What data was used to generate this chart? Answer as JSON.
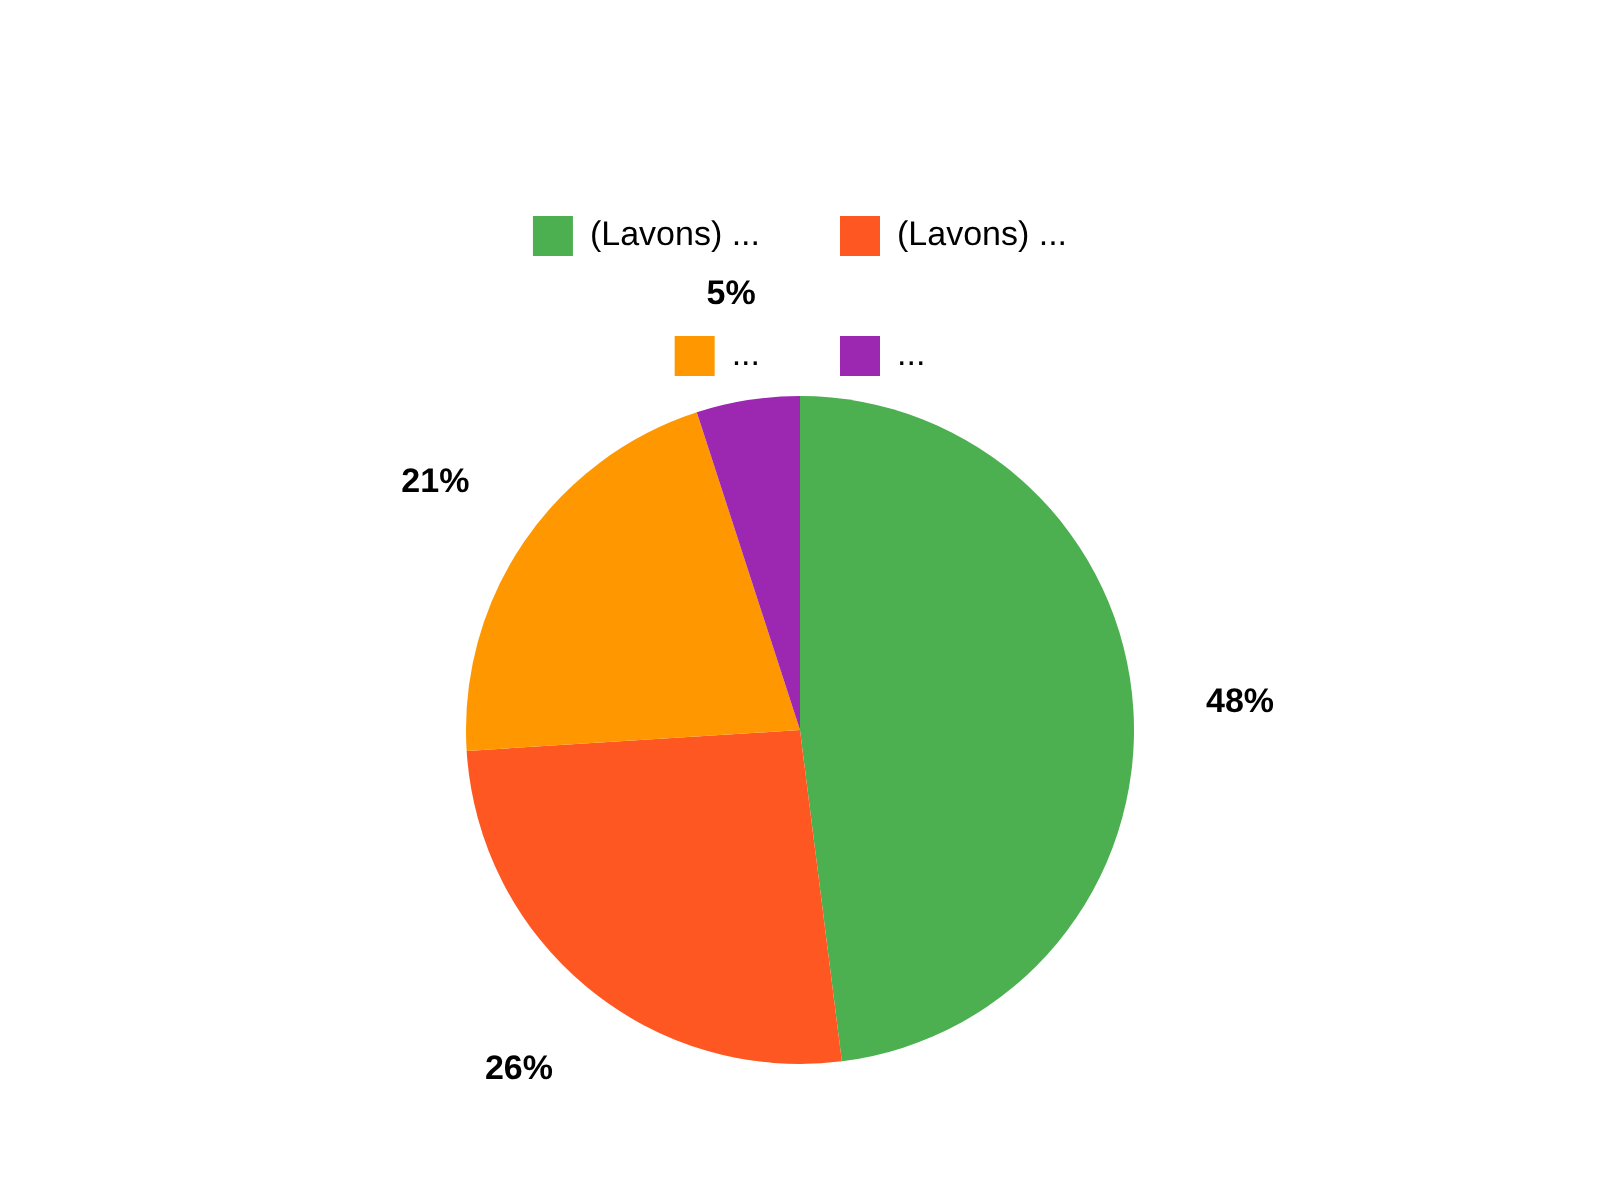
{
  "chart_data": {
    "type": "pie",
    "categories": [
      "(Lavons) ...",
      "(Lavons) ...",
      "...",
      "..."
    ],
    "values": [
      48,
      26,
      21,
      5
    ],
    "colors": [
      "#4caf50",
      "#ff5722",
      "#ff9800",
      "#9c27b0"
    ],
    "value_labels": [
      "48%",
      "26%",
      "21%",
      "5%"
    ],
    "legend": "top"
  }
}
